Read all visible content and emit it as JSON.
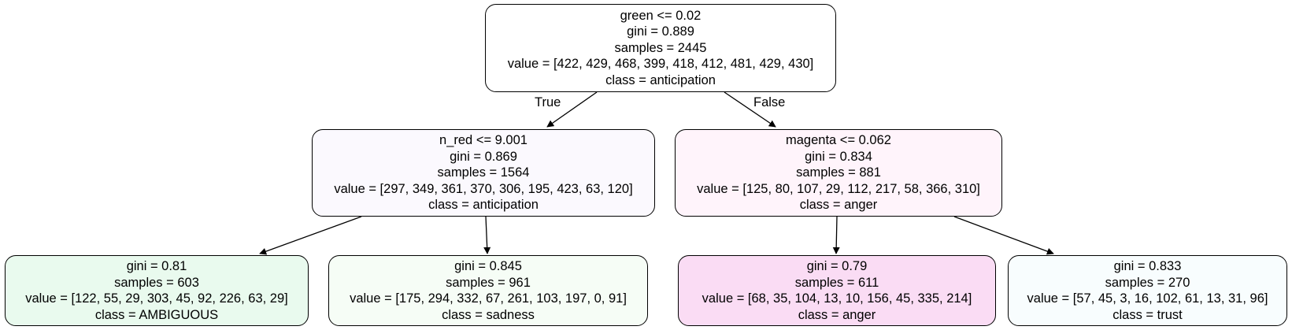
{
  "tree": {
    "root": {
      "split": "green <= 0.02",
      "gini": "gini = 0.889",
      "samples": "samples = 2445",
      "value": "value = [422, 429, 468, 399, 418, 412, 481, 429, 430]",
      "class": "class = anticipation",
      "fill": "#ffffff"
    },
    "left": {
      "split": "n_red <= 9.001",
      "gini": "gini = 0.869",
      "samples": "samples = 1564",
      "value": "value = [297, 349, 361, 370, 306, 195, 423, 63, 120]",
      "class": "class = anticipation",
      "fill": "#fbf9fe"
    },
    "right": {
      "split": "magenta <= 0.062",
      "gini": "gini = 0.834",
      "samples": "samples = 881",
      "value": "value = [125, 80, 107, 29, 112, 217, 58, 366, 310]",
      "class": "class = anger",
      "fill": "#fff4fb"
    },
    "leaf1": {
      "gini": "gini = 0.81",
      "samples": "samples = 603",
      "value": "value = [122, 55, 29, 303, 45, 92, 226, 63, 29]",
      "class": "class = AMBIGUOUS",
      "fill": "#e9faee"
    },
    "leaf2": {
      "gini": "gini = 0.845",
      "samples": "samples = 961",
      "value": "value = [175, 294, 332, 67, 261, 103, 197, 0, 91]",
      "class": "class = sadness",
      "fill": "#f6fdf6"
    },
    "leaf3": {
      "gini": "gini = 0.79",
      "samples": "samples = 611",
      "value": "value = [68, 35, 104, 13, 10, 156, 45, 335, 214]",
      "class": "class = anger",
      "fill": "#fadcf4"
    },
    "leaf4": {
      "gini": "gini = 0.833",
      "samples": "samples = 270",
      "value": "value = [57, 45, 3, 16, 102, 61, 13, 31, 96]",
      "class": "class = trust",
      "fill": "#f8fdfe"
    }
  },
  "edge_labels": {
    "true": "True",
    "false": "False"
  }
}
